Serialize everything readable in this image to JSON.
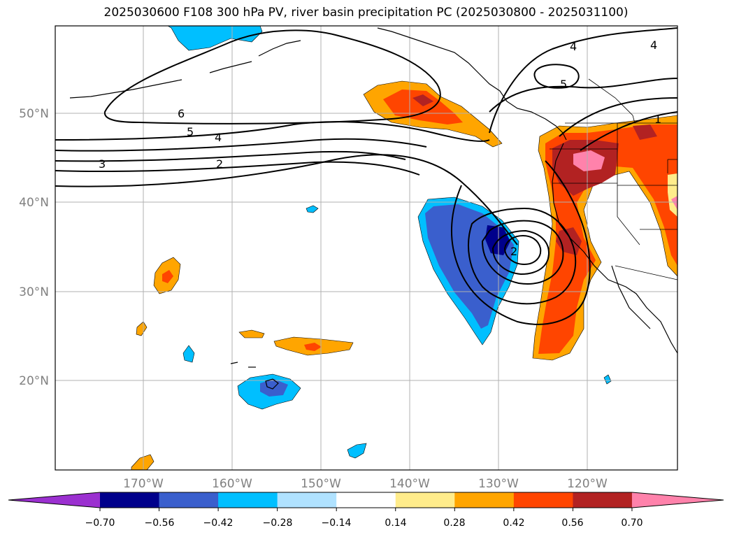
{
  "title": "2025030600 F108 300 hPa PV, river basin precipitation PC (2025030800 - 2025031100)",
  "lat_labels": [
    "50°N",
    "40°N",
    "30°N",
    "20°N"
  ],
  "lon_labels": [
    "170°W",
    "160°W",
    "150°W",
    "140°W",
    "130°W",
    "120°W"
  ],
  "pv_contour_labels": [
    "6",
    "5",
    "4",
    "3",
    "2",
    "4",
    "5",
    "4",
    "1",
    "2"
  ],
  "colorbar": {
    "ticks": [
      "−0.70",
      "−0.56",
      "−0.42",
      "−0.28",
      "−0.14",
      "0.14",
      "0.28",
      "0.42",
      "0.56",
      "0.70"
    ],
    "colors": [
      "#9b30d0",
      "#00008b",
      "#3a5fcd",
      "#00bfff",
      "#b0e2ff",
      "#ffffff",
      "#ffec8b",
      "#ffa500",
      "#ff4500",
      "#b22222",
      "#ff82ab"
    ]
  }
}
